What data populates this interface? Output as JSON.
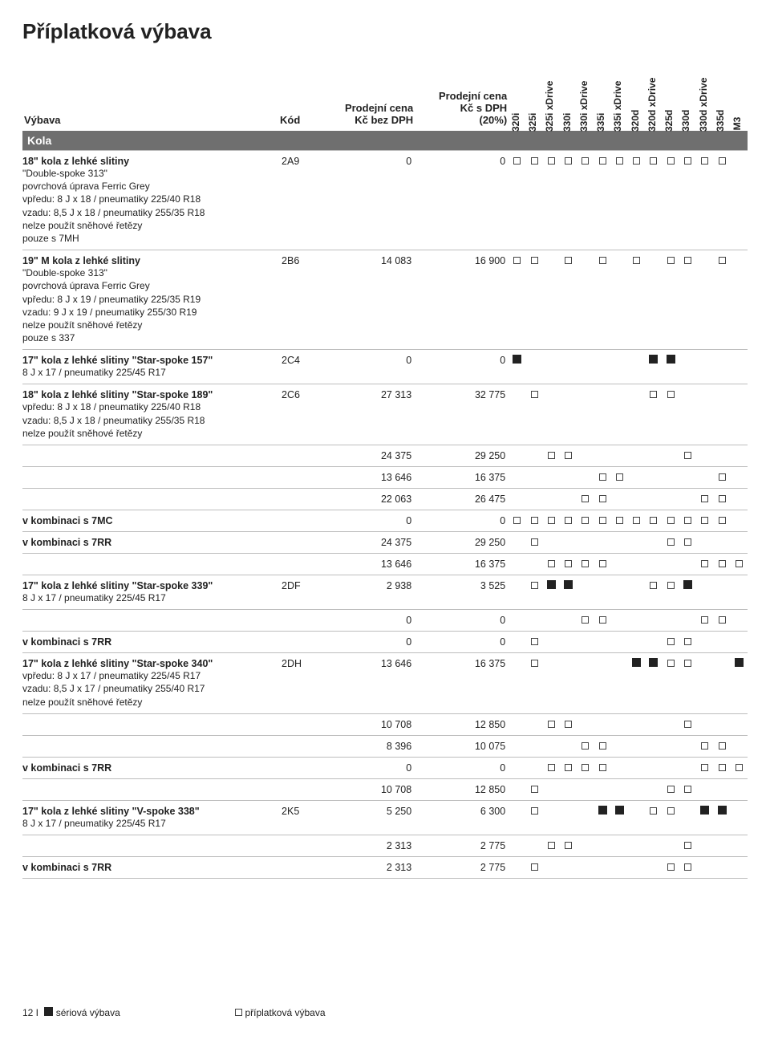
{
  "page": {
    "title": "Příplatková výbava",
    "header": {
      "col_desc": "Výbava",
      "col_code": "Kód",
      "col_p1_a": "Prodejní cena",
      "col_p1_b": "Kč bez DPH",
      "col_p2_a": "Prodejní cena",
      "col_p2_b": "Kč s DPH",
      "col_p2_c": "(20%)"
    },
    "models": [
      "320i",
      "325i",
      "325i xDrive",
      "330i",
      "330i xDrive",
      "335i",
      "335i xDrive",
      "320d",
      "320d xDrive",
      "325d",
      "330d",
      "330d xDrive",
      "335d",
      "M3"
    ],
    "section_label": "Kola",
    "footer": {
      "page_num": "12 I",
      "legend1": "sériová výbava",
      "legend2": "příplatková výbava"
    }
  },
  "rows": [
    {
      "title": "18\" kola z lehké slitiny",
      "sub": "\"Double-spoke 313\"\npovrchová úprava Ferric Grey\nvpředu: 8 J x 18 / pneumatiky 225/40 R18\nvzadu: 8,5 J x 18 / pneumatiky 255/35 R18\nnelze použít sněhové řetězy\npouze s 7MH",
      "code": "2A9",
      "p1": "0",
      "p2": "0",
      "m": [
        "o",
        "o",
        "o",
        "o",
        "o",
        "o",
        "o",
        "o",
        "o",
        "o",
        "o",
        "o",
        "o",
        ""
      ]
    },
    {
      "title": "19\" M kola z lehké slitiny",
      "sub": "\"Double-spoke 313\"\npovrchová úprava Ferric Grey\nvpředu: 8 J x 19 / pneumatiky 225/35 R19\nvzadu: 9 J x 19 / pneumatiky 255/30 R19\nnelze použít sněhové řetězy\npouze s 337",
      "code": "2B6",
      "p1": "14 083",
      "p2": "16 900",
      "m": [
        "o",
        "o",
        "",
        "o",
        "",
        "o",
        "",
        "o",
        "",
        "o",
        "o",
        "",
        "o",
        ""
      ]
    },
    {
      "title": "17\" kola z lehké slitiny \"Star-spoke 157\"",
      "sub": "8 J x 17 / pneumatiky 225/45 R17",
      "code": "2C4",
      "p1": "0",
      "p2": "0",
      "m": [
        "f",
        "",
        "",
        "",
        "",
        "",
        "",
        "",
        "f",
        "f",
        "",
        "",
        "",
        ""
      ]
    },
    {
      "title": "18\" kola z lehké slitiny \"Star-spoke 189\"",
      "sub": "vpředu: 8 J x 18 / pneumatiky 225/40 R18\nvzadu: 8,5 J x 18 / pneumatiky 255/35 R18\nnelze použít sněhové řetězy",
      "code": "2C6",
      "p1": "27 313",
      "p2": "32 775",
      "m": [
        "",
        "o",
        "",
        "",
        "",
        "",
        "",
        "",
        "o",
        "o",
        "",
        "",
        "",
        ""
      ]
    },
    {
      "title": "",
      "sub": "",
      "code": "",
      "p1": "24 375",
      "p2": "29 250",
      "m": [
        "",
        "",
        "o",
        "o",
        "",
        "",
        "",
        "",
        "",
        "",
        "o",
        "",
        "",
        ""
      ]
    },
    {
      "title": "",
      "sub": "",
      "code": "",
      "p1": "13 646",
      "p2": "16 375",
      "m": [
        "",
        "",
        "",
        "",
        "",
        "o",
        "o",
        "",
        "",
        "",
        "",
        "",
        "o",
        ""
      ]
    },
    {
      "title": "",
      "sub": "",
      "code": "",
      "p1": "22 063",
      "p2": "26 475",
      "m": [
        "",
        "",
        "",
        "",
        "o",
        "o",
        "",
        "",
        "",
        "",
        "",
        "o",
        "o",
        ""
      ]
    },
    {
      "title": "v kombinaci s 7MC",
      "sub": "",
      "code": "",
      "p1": "0",
      "p2": "0",
      "m": [
        "o",
        "o",
        "o",
        "o",
        "o",
        "o",
        "o",
        "o",
        "o",
        "o",
        "o",
        "o",
        "o",
        ""
      ]
    },
    {
      "title": "v kombinaci s 7RR",
      "sub": "",
      "code": "",
      "p1": "24 375",
      "p2": "29 250",
      "m": [
        "",
        "o",
        "",
        "",
        "",
        "",
        "",
        "",
        "",
        "o",
        "o",
        "",
        "",
        ""
      ]
    },
    {
      "title": "",
      "sub": "",
      "code": "",
      "p1": "13 646",
      "p2": "16 375",
      "m": [
        "",
        "",
        "o",
        "o",
        "o",
        "o",
        "",
        "",
        "",
        "",
        "",
        "o",
        "o",
        "o"
      ]
    },
    {
      "title": "17\" kola z lehké slitiny \"Star-spoke 339\"",
      "sub": "8 J x 17 / pneumatiky 225/45 R17",
      "code": "2DF",
      "p1": "2 938",
      "p2": "3 525",
      "m": [
        "",
        "o",
        "f",
        "f",
        "",
        "",
        "",
        "",
        "o",
        "o",
        "f",
        "",
        "",
        ""
      ]
    },
    {
      "title": "",
      "sub": "",
      "code": "",
      "p1": "0",
      "p2": "0",
      "m": [
        "",
        "",
        "",
        "",
        "o",
        "o",
        "",
        "",
        "",
        "",
        "",
        "o",
        "o",
        ""
      ]
    },
    {
      "title": "v kombinaci s 7RR",
      "sub": "",
      "code": "",
      "p1": "0",
      "p2": "0",
      "m": [
        "",
        "o",
        "",
        "",
        "",
        "",
        "",
        "",
        "",
        "o",
        "o",
        "",
        "",
        ""
      ]
    },
    {
      "title": "17\" kola z lehké slitiny \"Star-spoke 340\"",
      "sub": "vpředu: 8 J x 17 / pneumatiky 225/45 R17\nvzadu: 8,5 J x 17 / pneumatiky 255/40 R17\nnelze použít sněhové řetězy",
      "code": "2DH",
      "p1": "13 646",
      "p2": "16 375",
      "m": [
        "",
        "o",
        "",
        "",
        "",
        "",
        "",
        "f",
        "f",
        "o",
        "o",
        "",
        "",
        "f"
      ]
    },
    {
      "title": "",
      "sub": "",
      "code": "",
      "p1": "10 708",
      "p2": "12 850",
      "m": [
        "",
        "",
        "o",
        "o",
        "",
        "",
        "",
        "",
        "",
        "",
        "o",
        "",
        "",
        ""
      ]
    },
    {
      "title": "",
      "sub": "",
      "code": "",
      "p1": "8 396",
      "p2": "10 075",
      "m": [
        "",
        "",
        "",
        "",
        "o",
        "o",
        "",
        "",
        "",
        "",
        "",
        "o",
        "o",
        ""
      ]
    },
    {
      "title": "v kombinaci s 7RR",
      "sub": "",
      "code": "",
      "p1": "0",
      "p2": "0",
      "m": [
        "",
        "",
        "o",
        "o",
        "o",
        "o",
        "",
        "",
        "",
        "",
        "",
        "o",
        "o",
        "o"
      ]
    },
    {
      "title": "",
      "sub": "",
      "code": "",
      "p1": "10 708",
      "p2": "12 850",
      "m": [
        "",
        "o",
        "",
        "",
        "",
        "",
        "",
        "",
        "",
        "o",
        "o",
        "",
        "",
        ""
      ]
    },
    {
      "title": "17\" kola z lehké slitiny \"V-spoke 338\"",
      "sub": "8 J x 17 / pneumatiky 225/45 R17",
      "code": "2K5",
      "p1": "5 250",
      "p2": "6 300",
      "m": [
        "",
        "o",
        "",
        "",
        "",
        "f",
        "f",
        "",
        "o",
        "o",
        "",
        "f",
        "f",
        ""
      ]
    },
    {
      "title": "",
      "sub": "",
      "code": "",
      "p1": "2 313",
      "p2": "2 775",
      "m": [
        "",
        "",
        "o",
        "o",
        "",
        "",
        "",
        "",
        "",
        "",
        "o",
        "",
        "",
        ""
      ]
    },
    {
      "title": "v kombinaci s 7RR",
      "sub": "",
      "code": "",
      "p1": "2 313",
      "p2": "2 775",
      "m": [
        "",
        "o",
        "",
        "",
        "",
        "",
        "",
        "",
        "",
        "o",
        "o",
        "",
        "",
        ""
      ]
    }
  ]
}
